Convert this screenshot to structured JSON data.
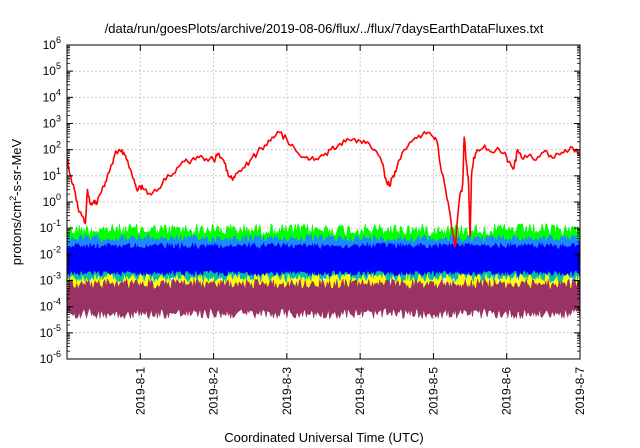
{
  "chart_data": {
    "type": "line",
    "title": "/data/run/goesPlots/archive/2019-08-06/flux/../flux/7daysEarthDataFluxes.txt",
    "xlabel": "Coordinated Universal Time (UTC)",
    "ylabel_parts": {
      "base": "protons/cm",
      "sup": "2",
      "rest": "-s-sr-MeV"
    },
    "x_range_days": [
      0,
      7
    ],
    "x_ticks": [
      {
        "day": 1,
        "label": "2019-8-1"
      },
      {
        "day": 2,
        "label": "2019-8-2"
      },
      {
        "day": 3,
        "label": "2019-8-3"
      },
      {
        "day": 4,
        "label": "2019-8-4"
      },
      {
        "day": 5,
        "label": "2019-8-5"
      },
      {
        "day": 6,
        "label": "2019-8-6"
      },
      {
        "day": 7,
        "label": "2019-8-7"
      }
    ],
    "y_scale": "log",
    "y_ticks": [
      {
        "base": "10",
        "exp": "6"
      },
      {
        "base": "10",
        "exp": "5"
      },
      {
        "base": "10",
        "exp": "4"
      },
      {
        "base": "10",
        "exp": "3"
      },
      {
        "base": "10",
        "exp": "2"
      },
      {
        "base": "10",
        "exp": "1"
      },
      {
        "base": "10",
        "exp": "0"
      },
      {
        "base": "10",
        "exp": "-1"
      },
      {
        "base": "10",
        "exp": "-2"
      },
      {
        "base": "10",
        "exp": "-3"
      },
      {
        "base": "10",
        "exp": "-4"
      },
      {
        "base": "10",
        "exp": "-5"
      },
      {
        "base": "10",
        "exp": "-6"
      }
    ],
    "y_range_log10": [
      -6,
      6
    ],
    "grid": true,
    "series": [
      {
        "color": "#ff0000",
        "points": [
          [
            0.0,
            50
          ],
          [
            0.05,
            10
          ],
          [
            0.1,
            3
          ],
          [
            0.15,
            0.6
          ],
          [
            0.2,
            0.3
          ],
          [
            0.25,
            0.15
          ],
          [
            0.28,
            3
          ],
          [
            0.32,
            0.8
          ],
          [
            0.36,
            1
          ],
          [
            0.4,
            0.8
          ],
          [
            0.45,
            2
          ],
          [
            0.5,
            4
          ],
          [
            0.55,
            10
          ],
          [
            0.6,
            25
          ],
          [
            0.65,
            60
          ],
          [
            0.7,
            90
          ],
          [
            0.75,
            100
          ],
          [
            0.8,
            60
          ],
          [
            0.85,
            20
          ],
          [
            0.9,
            8
          ],
          [
            0.95,
            3
          ],
          [
            1.0,
            4
          ],
          [
            1.05,
            3
          ],
          [
            1.1,
            2
          ],
          [
            1.2,
            3
          ],
          [
            1.3,
            5
          ],
          [
            1.4,
            10
          ],
          [
            1.5,
            20
          ],
          [
            1.6,
            35
          ],
          [
            1.7,
            40
          ],
          [
            1.8,
            50
          ],
          [
            1.9,
            45
          ],
          [
            2.0,
            40
          ],
          [
            2.05,
            60
          ],
          [
            2.1,
            50
          ],
          [
            2.15,
            30
          ],
          [
            2.2,
            10
          ],
          [
            2.25,
            8
          ],
          [
            2.3,
            12
          ],
          [
            2.4,
            20
          ],
          [
            2.5,
            40
          ],
          [
            2.6,
            80
          ],
          [
            2.7,
            150
          ],
          [
            2.8,
            300
          ],
          [
            2.9,
            450
          ],
          [
            3.0,
            250
          ],
          [
            3.1,
            120
          ],
          [
            3.2,
            50
          ],
          [
            3.3,
            40
          ],
          [
            3.4,
            45
          ],
          [
            3.5,
            60
          ],
          [
            3.6,
            100
          ],
          [
            3.7,
            150
          ],
          [
            3.8,
            200
          ],
          [
            3.9,
            250
          ],
          [
            4.0,
            220
          ],
          [
            4.1,
            200
          ],
          [
            4.2,
            100
          ],
          [
            4.3,
            30
          ],
          [
            4.35,
            8
          ],
          [
            4.4,
            4
          ],
          [
            4.45,
            10
          ],
          [
            4.5,
            20
          ],
          [
            4.6,
            100
          ],
          [
            4.7,
            200
          ],
          [
            4.8,
            350
          ],
          [
            4.9,
            400
          ],
          [
            5.0,
            300
          ],
          [
            5.05,
            200
          ],
          [
            5.1,
            20
          ],
          [
            5.15,
            5
          ],
          [
            5.2,
            1
          ],
          [
            5.25,
            0.1
          ],
          [
            5.3,
            0.02
          ],
          [
            5.35,
            1
          ],
          [
            5.4,
            5
          ],
          [
            5.42,
            300
          ],
          [
            5.45,
            30
          ],
          [
            5.48,
            5
          ],
          [
            5.5,
            0.05
          ],
          [
            5.52,
            10
          ],
          [
            5.55,
            50
          ],
          [
            5.6,
            100
          ],
          [
            5.7,
            150
          ],
          [
            5.8,
            80
          ],
          [
            5.9,
            100
          ],
          [
            6.0,
            50
          ],
          [
            6.05,
            30
          ],
          [
            6.1,
            20
          ],
          [
            6.15,
            100
          ],
          [
            6.2,
            50
          ],
          [
            6.3,
            60
          ],
          [
            6.4,
            40
          ],
          [
            6.5,
            80
          ],
          [
            6.6,
            60
          ],
          [
            6.7,
            70
          ],
          [
            6.8,
            100
          ],
          [
            6.9,
            120
          ],
          [
            7.0,
            60
          ]
        ]
      },
      {
        "color": "#00ff00",
        "band_log10": [
          -2.9,
          -0.9
        ],
        "noise_log10": 0.25
      },
      {
        "color": "#1e88ff",
        "band_log10": [
          -2.3,
          -1.3
        ],
        "noise_log10": 0.15
      },
      {
        "color": "#0000ff",
        "band_log10": [
          -2.8,
          -1.6
        ],
        "noise_log10": 0.12
      },
      {
        "color": "#00c0a8",
        "band_log10": [
          -3.1,
          -2.1
        ],
        "noise_log10": 0.15
      },
      {
        "color": "#ffff00",
        "band_log10": [
          -3.8,
          -2.8
        ],
        "noise_log10": 0.2
      },
      {
        "color": "#993366",
        "band_log10": [
          -4.4,
          -3.0
        ],
        "noise_log10": 0.2
      }
    ]
  }
}
